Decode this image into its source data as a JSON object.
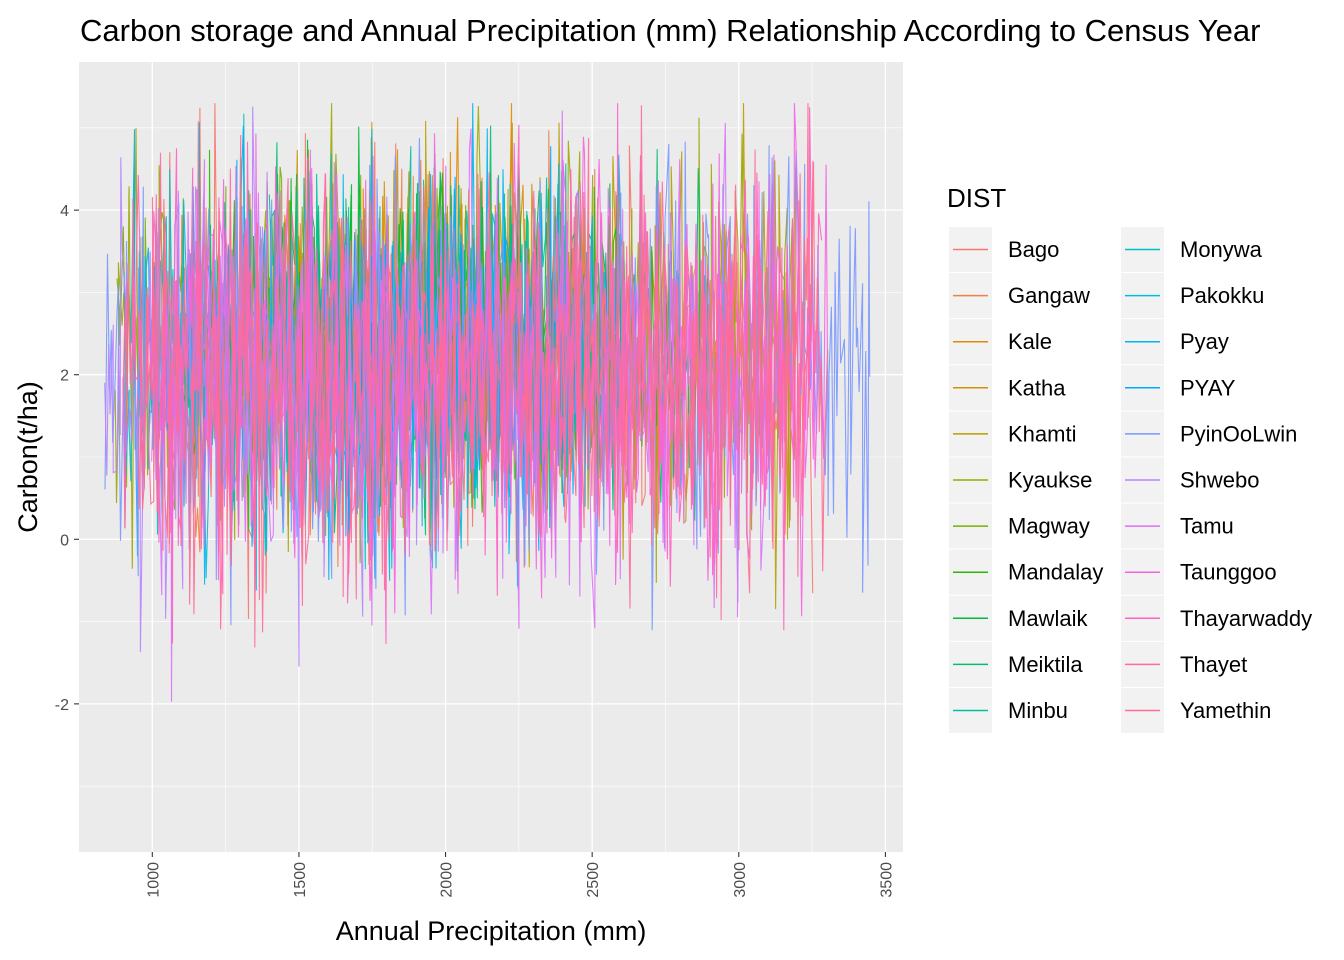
{
  "chart_data": {
    "type": "line",
    "title": "Carbon storage and Annual Precipitation (mm) Relationship According to Census Year",
    "xlabel": "Annual Precipitation (mm)",
    "ylabel": "Carbon(t/ha)",
    "xlim": [
      750,
      3560
    ],
    "ylim": [
      -3.8,
      5.8
    ],
    "x_ticks": [
      1000,
      1500,
      2000,
      2500,
      3000,
      3500
    ],
    "x_tick_labels": [
      "1000",
      "1500",
      "2000",
      "2500",
      "3000",
      "3500"
    ],
    "y_ticks": [
      -2,
      0,
      2,
      4
    ],
    "y_tick_labels": [
      "-2",
      "0",
      "2",
      "4"
    ],
    "grid": true,
    "legend": {
      "title": "DIST",
      "position": "right",
      "columns": 2
    },
    "series": [
      {
        "name": "Bago",
        "color": "#F8766D",
        "xrange": [
          1000,
          3250
        ],
        "center": 2.0,
        "spread": 1.6
      },
      {
        "name": "Gangaw",
        "color": "#EE8044",
        "xrange": [
          1050,
          2500
        ],
        "center": 2.2,
        "spread": 1.5
      },
      {
        "name": "Kale",
        "color": "#E08B00",
        "xrange": [
          1450,
          2300
        ],
        "center": 2.6,
        "spread": 1.4
      },
      {
        "name": "Katha",
        "color": "#CF9400",
        "xrange": [
          1450,
          2400
        ],
        "center": 2.6,
        "spread": 1.4
      },
      {
        "name": "Khamti",
        "color": "#B79F00",
        "xrange": [
          1350,
          3200
        ],
        "center": 2.4,
        "spread": 1.5
      },
      {
        "name": "Kyaukse",
        "color": "#9CA700",
        "xrange": [
          870,
          3180
        ],
        "center": 2.3,
        "spread": 1.5
      },
      {
        "name": "Magway",
        "color": "#77AF00",
        "xrange": [
          880,
          2150
        ],
        "center": 2.3,
        "spread": 1.4
      },
      {
        "name": "Mandalay",
        "color": "#2CB600",
        "xrange": [
          1100,
          2800
        ],
        "center": 2.4,
        "spread": 1.3
      },
      {
        "name": "Mawlaik",
        "color": "#00BA38",
        "xrange": [
          1400,
          2600
        ],
        "center": 2.7,
        "spread": 1.3
      },
      {
        "name": "Meiktila",
        "color": "#00BE70",
        "xrange": [
          1200,
          2900
        ],
        "center": 2.5,
        "spread": 1.3
      },
      {
        "name": "Minbu",
        "color": "#00BFA0",
        "xrange": [
          1400,
          2500
        ],
        "center": 2.5,
        "spread": 1.3
      },
      {
        "name": "Monywa",
        "color": "#00BFC4",
        "xrange": [
          900,
          2200
        ],
        "center": 2.2,
        "spread": 1.5
      },
      {
        "name": "Pakokku",
        "color": "#00BBDA",
        "xrange": [
          950,
          2300
        ],
        "center": 2.0,
        "spread": 1.6
      },
      {
        "name": "Pyay",
        "color": "#00B4EF",
        "xrange": [
          930,
          2600
        ],
        "center": 2.2,
        "spread": 1.6
      },
      {
        "name": "PYAY",
        "color": "#00A9FF",
        "xrange": [
          1500,
          2400
        ],
        "center": 2.3,
        "spread": 1.4
      },
      {
        "name": "PyinOoLwin",
        "color": "#7997FF",
        "xrange": [
          840,
          3450
        ],
        "center": 2.1,
        "spread": 1.7
      },
      {
        "name": "Shwebo",
        "color": "#B983FF",
        "xrange": [
          840,
          2000
        ],
        "center": 2.0,
        "spread": 1.7
      },
      {
        "name": "Tamu",
        "color": "#DC71FA",
        "xrange": [
          1000,
          3150
        ],
        "center": 2.0,
        "spread": 1.7
      },
      {
        "name": "Taunggoo",
        "color": "#F564E3",
        "xrange": [
          1000,
          3300
        ],
        "center": 2.0,
        "spread": 1.7
      },
      {
        "name": "Thayarwaddy",
        "color": "#FF61C3",
        "xrange": [
          900,
          3280
        ],
        "center": 2.0,
        "spread": 1.6
      },
      {
        "name": "Thayet",
        "color": "#FF6A98",
        "xrange": [
          900,
          3250
        ],
        "center": 2.1,
        "spread": 1.5
      },
      {
        "name": "Yamethin",
        "color": "#FF6C91",
        "xrange": [
          950,
          3300
        ],
        "center": 2.1,
        "spread": 1.5
      }
    ]
  }
}
